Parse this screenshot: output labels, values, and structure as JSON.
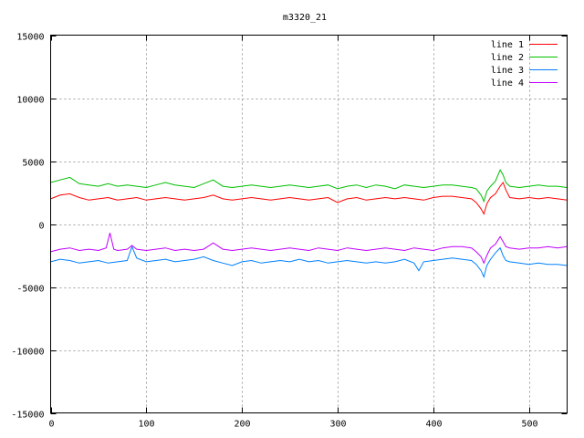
{
  "chart_data": {
    "type": "line",
    "title": "m3320_21",
    "xlabel": "",
    "ylabel": "",
    "xlim": [
      0,
      540
    ],
    "ylim": [
      -15000,
      15000
    ],
    "xticks": [
      0,
      100,
      200,
      300,
      400,
      500
    ],
    "yticks": [
      -15000,
      -10000,
      -5000,
      0,
      5000,
      10000,
      15000
    ],
    "grid": true,
    "legend_position": "top-right",
    "series": [
      {
        "name": "line 1",
        "color": "#ff0000",
        "x": [
          0,
          10,
          20,
          30,
          40,
          50,
          60,
          70,
          80,
          90,
          100,
          110,
          120,
          130,
          140,
          150,
          160,
          170,
          180,
          190,
          200,
          210,
          220,
          230,
          240,
          250,
          260,
          270,
          280,
          290,
          300,
          310,
          320,
          330,
          340,
          350,
          360,
          370,
          380,
          390,
          400,
          410,
          420,
          430,
          440,
          445,
          450,
          453,
          456,
          460,
          465,
          470,
          473,
          476,
          480,
          490,
          500,
          510,
          520,
          530,
          540
        ],
        "y": [
          2000,
          2300,
          2400,
          2100,
          1900,
          2000,
          2100,
          1900,
          2000,
          2100,
          1900,
          2000,
          2100,
          2000,
          1900,
          2000,
          2100,
          2300,
          2000,
          1900,
          2000,
          2100,
          2000,
          1900,
          2000,
          2100,
          2000,
          1900,
          2000,
          2100,
          1700,
          2000,
          2100,
          1900,
          2000,
          2100,
          2000,
          2100,
          2000,
          1900,
          2100,
          2200,
          2200,
          2100,
          2000,
          1700,
          1200,
          800,
          1600,
          2100,
          2400,
          3000,
          3300,
          2700,
          2100,
          2000,
          2100,
          2000,
          2100,
          2000,
          1900
        ]
      },
      {
        "name": "line 2",
        "color": "#00c000",
        "x": [
          0,
          10,
          20,
          30,
          40,
          50,
          60,
          70,
          80,
          90,
          100,
          110,
          120,
          130,
          140,
          150,
          160,
          170,
          180,
          190,
          200,
          210,
          220,
          230,
          240,
          250,
          260,
          270,
          280,
          290,
          300,
          310,
          320,
          330,
          340,
          350,
          360,
          370,
          380,
          390,
          400,
          410,
          420,
          430,
          440,
          445,
          450,
          453,
          456,
          460,
          465,
          470,
          473,
          476,
          480,
          490,
          500,
          510,
          520,
          530,
          540
        ],
        "y": [
          3300,
          3500,
          3700,
          3200,
          3100,
          3000,
          3200,
          3000,
          3100,
          3000,
          2900,
          3100,
          3300,
          3100,
          3000,
          2900,
          3200,
          3500,
          3000,
          2900,
          3000,
          3100,
          3000,
          2900,
          3000,
          3100,
          3000,
          2900,
          3000,
          3100,
          2800,
          3000,
          3100,
          2900,
          3100,
          3000,
          2800,
          3100,
          3000,
          2900,
          3000,
          3100,
          3100,
          3000,
          2900,
          2800,
          2300,
          1800,
          2600,
          3000,
          3400,
          4300,
          3900,
          3300,
          3000,
          2900,
          3000,
          3100,
          3000,
          3000,
          2900
        ]
      },
      {
        "name": "line 3",
        "color": "#0080ff",
        "x": [
          0,
          10,
          20,
          30,
          40,
          50,
          60,
          70,
          80,
          85,
          90,
          100,
          110,
          120,
          130,
          140,
          150,
          160,
          170,
          180,
          190,
          200,
          210,
          220,
          230,
          240,
          250,
          260,
          270,
          280,
          290,
          300,
          310,
          320,
          330,
          340,
          350,
          360,
          370,
          380,
          385,
          390,
          400,
          410,
          420,
          430,
          440,
          445,
          450,
          453,
          456,
          460,
          465,
          470,
          473,
          476,
          480,
          490,
          500,
          510,
          520,
          530,
          540
        ],
        "y": [
          -3000,
          -2800,
          -2900,
          -3100,
          -3000,
          -2900,
          -3100,
          -3000,
          -2900,
          -1800,
          -2700,
          -3000,
          -2900,
          -2800,
          -3000,
          -2900,
          -2800,
          -2600,
          -2900,
          -3100,
          -3300,
          -3000,
          -2900,
          -3100,
          -3000,
          -2900,
          -3000,
          -2800,
          -3000,
          -2900,
          -3100,
          -3000,
          -2900,
          -3000,
          -3100,
          -3000,
          -3100,
          -3000,
          -2800,
          -3100,
          -3700,
          -3000,
          -2900,
          -2800,
          -2700,
          -2800,
          -2900,
          -3200,
          -3700,
          -4200,
          -3300,
          -2800,
          -2300,
          -1900,
          -2500,
          -2900,
          -3000,
          -3100,
          -3200,
          -3100,
          -3200,
          -3200,
          -3300
        ]
      },
      {
        "name": "line 4",
        "color": "#c000ff",
        "x": [
          0,
          10,
          20,
          30,
          40,
          50,
          58,
          62,
          66,
          70,
          80,
          85,
          90,
          100,
          110,
          120,
          130,
          140,
          150,
          160,
          170,
          180,
          190,
          200,
          210,
          220,
          230,
          240,
          250,
          260,
          270,
          280,
          290,
          300,
          310,
          320,
          330,
          340,
          350,
          360,
          370,
          380,
          390,
          400,
          410,
          420,
          430,
          440,
          445,
          450,
          453,
          456,
          460,
          465,
          470,
          473,
          476,
          480,
          490,
          500,
          510,
          520,
          530,
          540
        ],
        "y": [
          -2200,
          -2000,
          -1900,
          -2100,
          -2000,
          -2100,
          -1900,
          -700,
          -2000,
          -2100,
          -2000,
          -1700,
          -2000,
          -2100,
          -2000,
          -1900,
          -2100,
          -2000,
          -2100,
          -2000,
          -1500,
          -2000,
          -2100,
          -2000,
          -1900,
          -2000,
          -2100,
          -2000,
          -1900,
          -2000,
          -2100,
          -1900,
          -2000,
          -2100,
          -1900,
          -2000,
          -2100,
          -2000,
          -1900,
          -2000,
          -2100,
          -1900,
          -2000,
          -2100,
          -1900,
          -1800,
          -1800,
          -1900,
          -2200,
          -2600,
          -3100,
          -2500,
          -1900,
          -1600,
          -1000,
          -1400,
          -1800,
          -1900,
          -2000,
          -1900,
          -1900,
          -1800,
          -1900,
          -1800
        ]
      }
    ]
  }
}
